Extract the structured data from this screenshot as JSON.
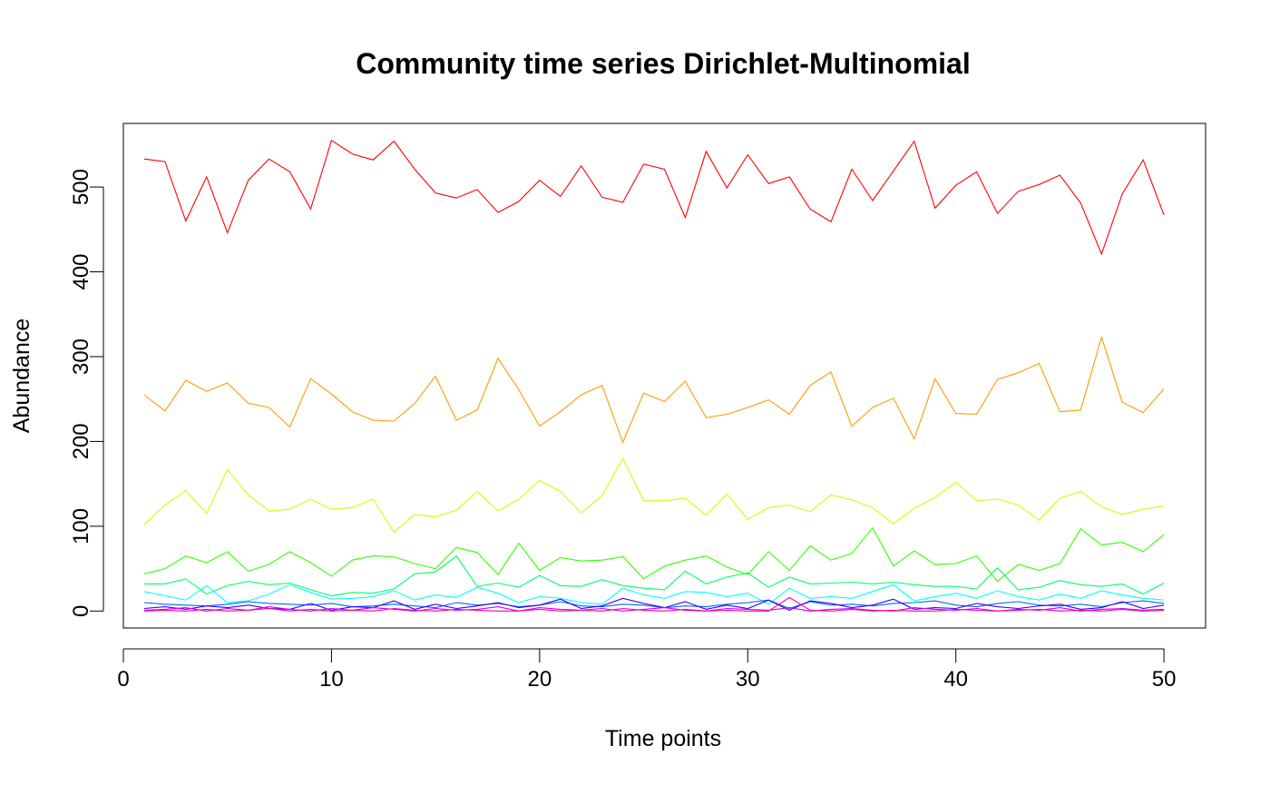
{
  "chart_data": {
    "type": "line",
    "title": "Community time series Dirichlet-Multinomial",
    "xlabel": "Time points",
    "ylabel": "Abundance",
    "xlim": [
      0,
      52
    ],
    "ylim": [
      -20,
      575
    ],
    "xticks": [
      0,
      10,
      20,
      30,
      40,
      50
    ],
    "yticks": [
      0,
      100,
      200,
      300,
      400,
      500
    ],
    "grid": false,
    "legend": "none",
    "x": [
      1,
      2,
      3,
      4,
      5,
      6,
      7,
      8,
      9,
      10,
      11,
      12,
      13,
      14,
      15,
      16,
      17,
      18,
      19,
      20,
      21,
      22,
      23,
      24,
      25,
      26,
      27,
      28,
      29,
      30,
      31,
      32,
      33,
      34,
      35,
      36,
      37,
      38,
      39,
      40,
      41,
      42,
      43,
      44,
      45,
      46,
      47,
      48,
      49,
      50
    ],
    "series": [
      {
        "color": "#FF0000",
        "values": [
          533,
          530,
          460,
          512,
          446,
          508,
          533,
          518,
          474,
          555,
          539,
          532,
          554,
          521,
          493,
          487,
          497,
          470,
          483,
          508,
          489,
          525,
          488,
          482,
          527,
          521,
          464,
          542,
          499,
          538,
          504,
          512,
          474,
          459,
          521,
          484,
          519,
          554,
          475,
          502,
          518,
          469,
          495,
          503,
          514,
          481,
          421,
          492,
          532,
          467
        ]
      },
      {
        "color": "#FF9900",
        "values": [
          255,
          236,
          272,
          259,
          269,
          245,
          240,
          217,
          274,
          256,
          235,
          225,
          224,
          245,
          277,
          225,
          237,
          298,
          261,
          218,
          235,
          255,
          266,
          199,
          257,
          247,
          271,
          228,
          232,
          240,
          249,
          232,
          266,
          282,
          218,
          240,
          251,
          203,
          274,
          233,
          232,
          273,
          281,
          292,
          235,
          237,
          323,
          246,
          234,
          262
        ]
      },
      {
        "color": "#CCFF00",
        "values": [
          102,
          125,
          142,
          115,
          167,
          137,
          118,
          120,
          132,
          120,
          122,
          132,
          93,
          114,
          111,
          119,
          141,
          118,
          132,
          154,
          141,
          116,
          136,
          180,
          130,
          130,
          133,
          113,
          138,
          108,
          122,
          125,
          117,
          137,
          131,
          122,
          103,
          121,
          134,
          152,
          130,
          132,
          125,
          107,
          133,
          141,
          123,
          114,
          120,
          124
        ]
      },
      {
        "color": "#33FF00",
        "values": [
          44,
          50,
          65,
          57,
          70,
          47,
          55,
          70,
          57,
          41,
          60,
          65,
          64,
          56,
          50,
          75,
          69,
          43,
          80,
          48,
          63,
          59,
          60,
          64,
          38,
          53,
          60,
          65,
          52,
          43,
          70,
          48,
          77,
          60,
          68,
          98,
          53,
          71,
          55,
          56,
          65,
          35,
          55,
          48,
          56,
          97,
          78,
          81,
          70,
          90
        ]
      },
      {
        "color": "#00FF66",
        "values": [
          32,
          32,
          38,
          20,
          30,
          35,
          31,
          33,
          25,
          18,
          22,
          21,
          26,
          44,
          46,
          65,
          29,
          33,
          28,
          42,
          30,
          29,
          37,
          30,
          27,
          25,
          47,
          32,
          40,
          45,
          28,
          40,
          32,
          33,
          34,
          32,
          34,
          31,
          29,
          29,
          26,
          51,
          25,
          28,
          36,
          31,
          29,
          32,
          20,
          33
        ]
      },
      {
        "color": "#00FFFF",
        "values": [
          23,
          18,
          13,
          30,
          10,
          12,
          20,
          31,
          22,
          14,
          15,
          17,
          24,
          13,
          19,
          16,
          28,
          21,
          10,
          17,
          15,
          10,
          8,
          27,
          19,
          15,
          23,
          22,
          17,
          21,
          8,
          27,
          15,
          17,
          15,
          23,
          31,
          12,
          17,
          21,
          15,
          24,
          17,
          13,
          20,
          15,
          24,
          19,
          15,
          13
        ]
      },
      {
        "color": "#0066FF",
        "values": [
          10,
          8,
          7,
          6,
          8,
          11,
          9,
          8,
          7,
          9,
          5,
          6,
          8,
          6,
          4,
          10,
          7,
          9,
          5,
          7,
          11,
          6,
          5,
          8,
          7,
          4,
          6,
          5,
          8,
          10,
          13,
          3,
          11,
          7,
          8,
          6,
          9,
          10,
          12,
          7,
          5,
          9,
          11,
          7,
          6,
          8,
          5,
          10,
          12,
          9
        ]
      },
      {
        "color": "#3300FF",
        "values": [
          3,
          5,
          2,
          6,
          4,
          7,
          3,
          2,
          9,
          1,
          5,
          4,
          12,
          2,
          8,
          3,
          6,
          10,
          4,
          7,
          14,
          3,
          6,
          15,
          9,
          4,
          11,
          2,
          7,
          3,
          13,
          1,
          12,
          9,
          4,
          7,
          14,
          2,
          4,
          3,
          9,
          5,
          3,
          6,
          8,
          2,
          4,
          11,
          3,
          7
        ]
      },
      {
        "color": "#CC00FF",
        "values": [
          1,
          2,
          4,
          0,
          3,
          1,
          5,
          2,
          0,
          3,
          1,
          4,
          2,
          0,
          3,
          1,
          2,
          5,
          0,
          4,
          2,
          1,
          3,
          0,
          2,
          4,
          1,
          0,
          3,
          2,
          1,
          4,
          0,
          2,
          3,
          1,
          0,
          4,
          2,
          1,
          3,
          0,
          2,
          1,
          4,
          0,
          2,
          3,
          1,
          2
        ]
      },
      {
        "color": "#FF0099",
        "values": [
          0,
          1,
          0,
          2,
          0,
          1,
          3,
          0,
          2,
          0,
          1,
          0,
          3,
          1,
          0,
          2,
          1,
          0,
          0,
          2,
          0,
          1,
          0,
          3,
          1,
          0,
          2,
          0,
          1,
          0,
          0,
          16,
          1,
          0,
          2,
          0,
          1,
          0,
          0,
          2,
          1,
          0,
          1,
          2,
          0,
          1,
          0,
          2,
          0,
          1
        ]
      }
    ]
  }
}
